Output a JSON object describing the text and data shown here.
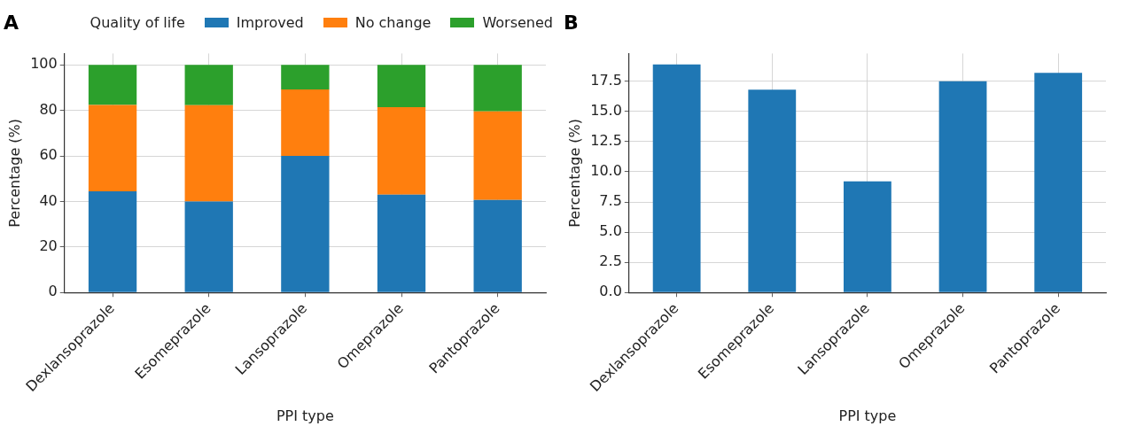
{
  "chart_data": [
    {
      "type": "bar",
      "title": "A",
      "xlabel": "PPI type",
      "ylabel": "Percentage (%)",
      "legend_title": "Quality of life",
      "categories": [
        "Dexlansoprazole",
        "Esomeprazole",
        "Lansoprazole",
        "Omeprazole",
        "Pantoprazole"
      ],
      "series": [
        {
          "name": "Improved",
          "color": "#1f77b4",
          "values": [
            44.5,
            40.0,
            60.0,
            43.0,
            40.7
          ]
        },
        {
          "name": "No change",
          "color": "#ff7f0e",
          "values": [
            37.9,
            42.3,
            29.2,
            38.4,
            38.9
          ]
        },
        {
          "name": "Worsened",
          "color": "#2ca02c",
          "values": [
            17.6,
            17.7,
            10.8,
            18.6,
            20.4
          ]
        }
      ],
      "stacked": true,
      "ylim": [
        0,
        105
      ],
      "yticks": [
        0,
        20,
        40,
        60,
        80,
        100
      ],
      "grid": true,
      "legend": "top"
    },
    {
      "type": "bar",
      "title": "B",
      "xlabel": "PPI type",
      "ylabel": "Percentage (%)",
      "categories": [
        "Dexlansoprazole",
        "Esomeprazole",
        "Lansoprazole",
        "Omeprazole",
        "Pantoprazole"
      ],
      "values": [
        18.9,
        16.8,
        9.2,
        17.5,
        18.2
      ],
      "color": "#1f77b4",
      "ylim": [
        0,
        19.8
      ],
      "yticks": [
        {
          "value": 0,
          "label": "0.0"
        },
        {
          "value": 2.5,
          "label": "2.5"
        },
        {
          "value": 5,
          "label": "5.0"
        },
        {
          "value": 7.5,
          "label": "7.5"
        },
        {
          "value": 10,
          "label": "10.0"
        },
        {
          "value": 12.5,
          "label": "12.5"
        },
        {
          "value": 15,
          "label": "15.0"
        },
        {
          "value": 17.5,
          "label": "17.5"
        }
      ],
      "grid": true
    }
  ]
}
